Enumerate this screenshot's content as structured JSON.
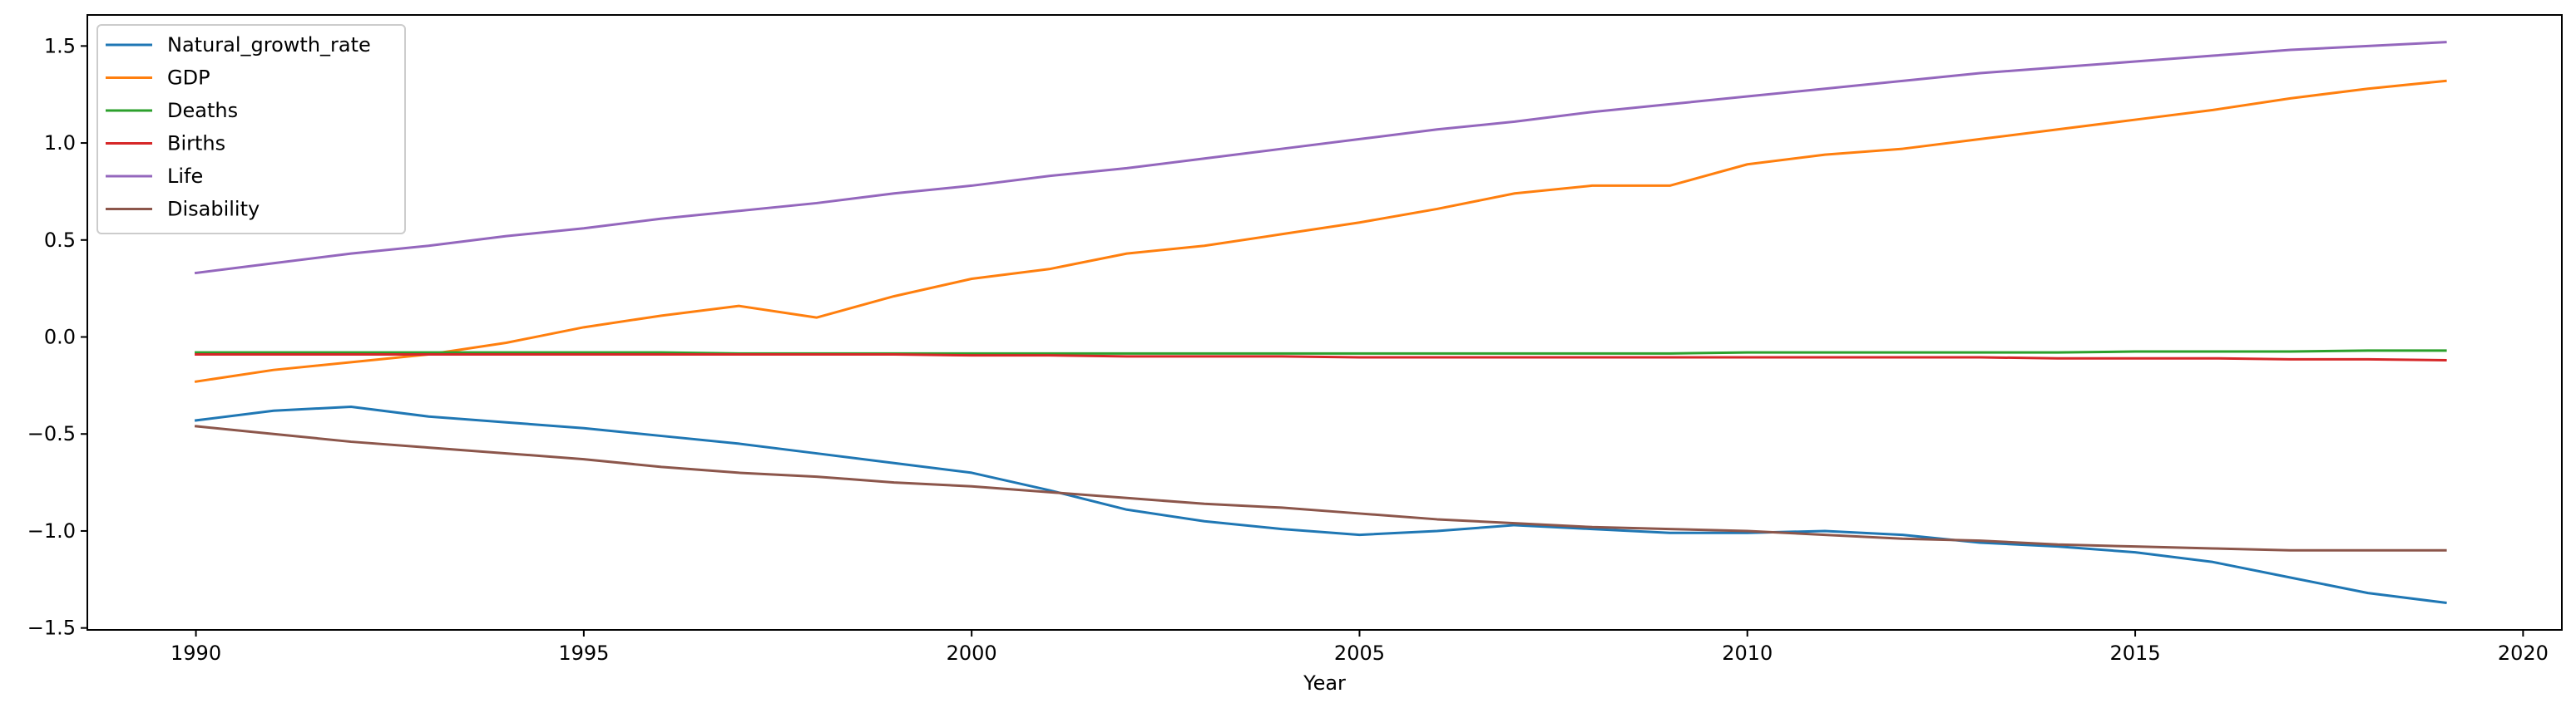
{
  "chart_data": {
    "type": "line",
    "title": "",
    "xlabel": "Year",
    "ylabel": "",
    "xlim": [
      1988.6,
      2020.5
    ],
    "ylim": [
      -1.51,
      1.66
    ],
    "xticks": [
      1990,
      1995,
      2000,
      2005,
      2010,
      2015,
      2020
    ],
    "yticks": [
      -1.5,
      -1.0,
      -0.5,
      0.0,
      0.5,
      1.0,
      1.5
    ],
    "ytick_labels": [
      "−1.5",
      "−1.0",
      "−0.5",
      "0.0",
      "0.5",
      "1.0",
      "1.5"
    ],
    "grid": false,
    "legend_position": "top-left",
    "x": [
      1990,
      1991,
      1992,
      1993,
      1994,
      1995,
      1996,
      1997,
      1998,
      1999,
      2000,
      2001,
      2002,
      2003,
      2004,
      2005,
      2006,
      2007,
      2008,
      2009,
      2010,
      2011,
      2012,
      2013,
      2014,
      2015,
      2016,
      2017,
      2018,
      2019
    ],
    "series": [
      {
        "name": "Natural_growth_rate",
        "color": "#1f77b4",
        "values": [
          -0.43,
          -0.38,
          -0.36,
          -0.41,
          -0.44,
          -0.47,
          -0.51,
          -0.55,
          -0.6,
          -0.65,
          -0.7,
          -0.79,
          -0.89,
          -0.95,
          -0.99,
          -1.02,
          -1.0,
          -0.97,
          -0.99,
          -1.01,
          -1.01,
          -1.0,
          -1.02,
          -1.06,
          -1.08,
          -1.11,
          -1.16,
          -1.24,
          -1.32,
          -1.37
        ]
      },
      {
        "name": "GDP",
        "color": "#ff7f0e",
        "values": [
          -0.23,
          -0.17,
          -0.13,
          -0.09,
          -0.03,
          0.05,
          0.11,
          0.16,
          0.1,
          0.21,
          0.3,
          0.35,
          0.43,
          0.47,
          0.53,
          0.59,
          0.66,
          0.74,
          0.78,
          0.78,
          0.89,
          0.94,
          0.97,
          1.02,
          1.07,
          1.12,
          1.17,
          1.23,
          1.28,
          1.32
        ]
      },
      {
        "name": "Deaths",
        "color": "#2ca02c",
        "values": [
          -0.08,
          -0.08,
          -0.08,
          -0.08,
          -0.08,
          -0.08,
          -0.08,
          -0.085,
          -0.085,
          -0.085,
          -0.085,
          -0.085,
          -0.085,
          -0.085,
          -0.085,
          -0.085,
          -0.085,
          -0.085,
          -0.085,
          -0.085,
          -0.08,
          -0.08,
          -0.08,
          -0.08,
          -0.08,
          -0.075,
          -0.075,
          -0.075,
          -0.07,
          -0.07
        ]
      },
      {
        "name": "Births",
        "color": "#d62728",
        "values": [
          -0.09,
          -0.09,
          -0.09,
          -0.09,
          -0.09,
          -0.09,
          -0.09,
          -0.09,
          -0.09,
          -0.09,
          -0.095,
          -0.095,
          -0.1,
          -0.1,
          -0.1,
          -0.105,
          -0.105,
          -0.105,
          -0.105,
          -0.105,
          -0.105,
          -0.105,
          -0.105,
          -0.105,
          -0.11,
          -0.11,
          -0.11,
          -0.115,
          -0.115,
          -0.12
        ]
      },
      {
        "name": "Life",
        "color": "#9467bd",
        "values": [
          0.33,
          0.38,
          0.43,
          0.47,
          0.52,
          0.56,
          0.61,
          0.65,
          0.69,
          0.74,
          0.78,
          0.83,
          0.87,
          0.92,
          0.97,
          1.02,
          1.07,
          1.11,
          1.16,
          1.2,
          1.24,
          1.28,
          1.32,
          1.36,
          1.39,
          1.42,
          1.45,
          1.48,
          1.5,
          1.52
        ]
      },
      {
        "name": "Disability",
        "color": "#8c564b",
        "values": [
          -0.46,
          -0.5,
          -0.54,
          -0.57,
          -0.6,
          -0.63,
          -0.67,
          -0.7,
          -0.72,
          -0.75,
          -0.77,
          -0.8,
          -0.83,
          -0.86,
          -0.88,
          -0.91,
          -0.94,
          -0.96,
          -0.98,
          -0.99,
          -1.0,
          -1.02,
          -1.04,
          -1.05,
          -1.07,
          -1.08,
          -1.09,
          -1.1,
          -1.1,
          -1.1
        ]
      }
    ]
  }
}
